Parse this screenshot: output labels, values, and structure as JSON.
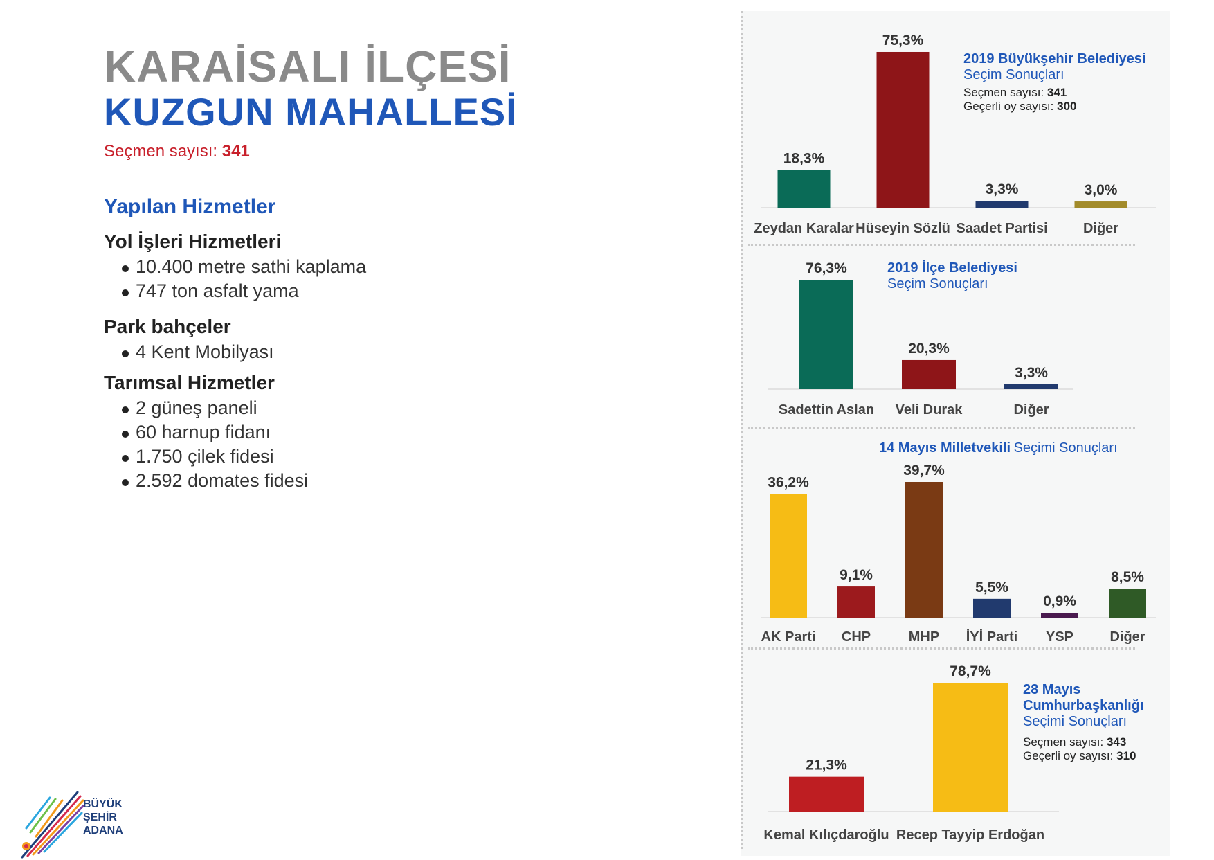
{
  "header": {
    "title_line1": "KARAİSALI İLÇESİ",
    "title_line2": "KUZGUN MAHALLESİ",
    "voters_label": "Seçmen sayısı:",
    "voters_value": "341"
  },
  "services": {
    "heading": "Yapılan Hizmetler",
    "groups": [
      {
        "title": "Yol İşleri Hizmetleri",
        "items": [
          "10.400 metre sathi kaplama",
          "747 ton asfalt yama"
        ]
      },
      {
        "title": "Park bahçeler",
        "items": [
          "4 Kent Mobilyası"
        ]
      },
      {
        "title": "Tarımsal Hizmetler",
        "items": [
          "2 güneş paneli",
          "60 harnup fidanı",
          "1.750 çilek fidesi",
          "2.592 domates fidesi"
        ]
      }
    ]
  },
  "logo": {
    "line1": "BÜYÜK",
    "line2": "ŞEHİR",
    "line3": "ADANA"
  },
  "chart_data": [
    {
      "type": "bar",
      "title": "2019 Büyükşehir Belediyesi",
      "subtitle": "Seçim Sonuçları",
      "info": [
        {
          "label": "Seçmen sayısı:",
          "value": "341"
        },
        {
          "label": "Geçerli oy sayısı:",
          "value": "300"
        }
      ],
      "categories": [
        "Zeydan Karalar",
        "Hüseyin Sözlü",
        "Saadet Partisi",
        "Diğer"
      ],
      "values": [
        18.3,
        75.3,
        3.3,
        3.0
      ],
      "labels": [
        "18,3%",
        "75,3%",
        "3,3%",
        "3,0%"
      ],
      "colors": [
        "#0a6b57",
        "#8e1518",
        "#213a6e",
        "#a28b2a"
      ]
    },
    {
      "type": "bar",
      "title": "2019 İlçe Belediyesi",
      "subtitle": "Seçim Sonuçları",
      "info": [],
      "categories": [
        "Sadettin Aslan",
        "Veli Durak",
        "Diğer"
      ],
      "values": [
        76.3,
        20.3,
        3.3
      ],
      "labels": [
        "76,3%",
        "20,3%",
        "3,3%"
      ],
      "colors": [
        "#0a6b57",
        "#8e1518",
        "#213a6e"
      ]
    },
    {
      "type": "bar",
      "title": "14 Mayıs Milletvekili",
      "subtitle": "Seçimi Sonuçları",
      "info": [],
      "categories": [
        "AK Parti",
        "CHP",
        "MHP",
        "İYİ Parti",
        "YSP",
        "Diğer"
      ],
      "values": [
        36.2,
        9.1,
        39.7,
        5.5,
        0.9,
        8.5
      ],
      "labels": [
        "36,2%",
        "9,1%",
        "39,7%",
        "5,5%",
        "0,9%",
        "8,5%"
      ],
      "colors": [
        "#f6bc15",
        "#9c1a1d",
        "#7a3a14",
        "#213a6e",
        "#4a1a4f",
        "#2f5a26"
      ]
    },
    {
      "type": "bar",
      "title": "28 Mayıs Cumhurbaşkanlığı",
      "subtitle": "Seçimi Sonuçları",
      "info": [
        {
          "label": "Seçmen sayısı:",
          "value": "343"
        },
        {
          "label": "Geçerli oy sayısı:",
          "value": "310"
        }
      ],
      "categories": [
        "Kemal Kılıçdaroğlu",
        "Recep Tayyip Erdoğan"
      ],
      "values": [
        21.3,
        78.7
      ],
      "labels": [
        "21,3%",
        "78,7%"
      ],
      "colors": [
        "#be1e22",
        "#f6bc15"
      ]
    }
  ]
}
